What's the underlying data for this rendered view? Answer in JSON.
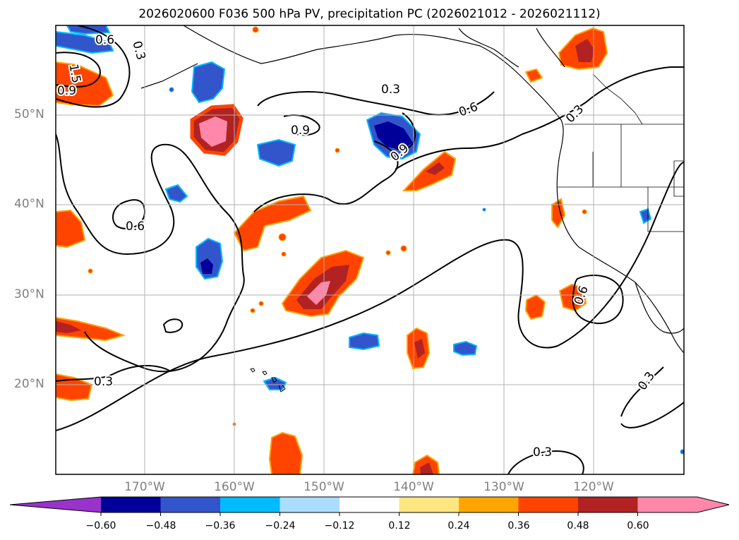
{
  "title": "2026020600 F036 500 hPa PV, precipitation PC (2026021012 - 2026021112)",
  "map": {
    "lat_labels": [
      "50°N",
      "40°N",
      "30°N",
      "20°N"
    ],
    "lon_labels": [
      "170°W",
      "160°W",
      "150°W",
      "140°W",
      "130°W",
      "120°W"
    ],
    "contour_labels": [
      "0.6",
      "0.3",
      "1.5",
      "0.9",
      "0.3",
      "0.9",
      "0.6",
      "0.3",
      "0.9",
      "0.6",
      "0.6",
      "0.3",
      "0.3",
      "0.3"
    ]
  },
  "colorbar": {
    "tick_labels": [
      "−0.60",
      "−0.48",
      "−0.36",
      "−0.24",
      "−0.12",
      "0.12",
      "0.24",
      "0.36",
      "0.48",
      "0.60"
    ],
    "colors": [
      "#9933cc",
      "#000099",
      "#3355cc",
      "#00bbff",
      "#aaddff",
      "#ffffff",
      "#ffe680",
      "#ffa500",
      "#ff4400",
      "#b22222",
      "#ff88aa",
      "#ff88aa"
    ]
  }
}
